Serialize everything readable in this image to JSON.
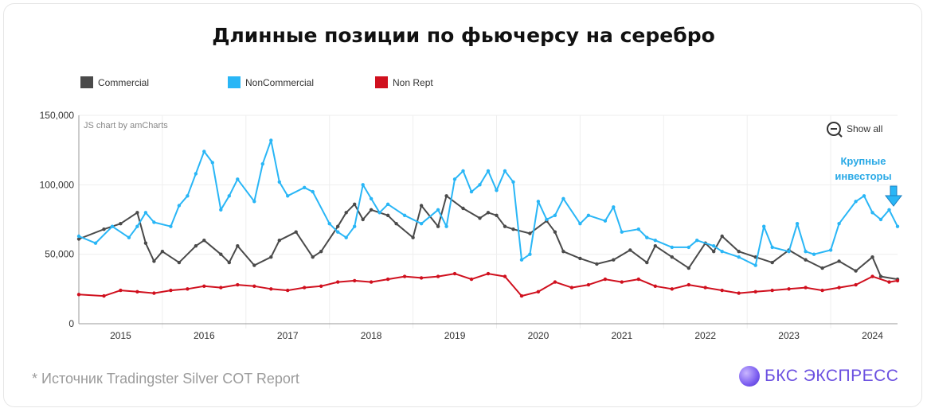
{
  "title": "Длинные позиции по фьючерсу на серебро",
  "legend": [
    {
      "label": "Commercial",
      "color": "#4a4a4a"
    },
    {
      "label": "NonCommercial",
      "color": "#29b6f6"
    },
    {
      "label": "Non Rept",
      "color": "#d0101e"
    }
  ],
  "credit": "JS chart by amCharts",
  "show_all": "Show all",
  "annotation": [
    "Крупные",
    "инвесторы"
  ],
  "footnote": "*  Источник Tradingster Silver COT Report",
  "brand": "БКС ЭКСПРЕСС",
  "chart_data": {
    "type": "line",
    "title": "Длинные позиции по фьючерсу на серебро",
    "ylim": [
      0,
      150000
    ],
    "yticks": [
      0,
      50000,
      100000,
      150000
    ],
    "ytick_labels": [
      "0",
      "50,000",
      "100,000",
      "150,000"
    ],
    "xlim": [
      2014.5,
      2024.3
    ],
    "xticks": [
      "2015",
      "2016",
      "2017",
      "2018",
      "2019",
      "2020",
      "2021",
      "2022",
      "2023",
      "2024"
    ],
    "grid": true,
    "legend_position": "top-left",
    "series": [
      {
        "name": "Commercial",
        "color": "#4a4a4a",
        "x": [
          2014.5,
          2014.8,
          2015.0,
          2015.2,
          2015.3,
          2015.4,
          2015.5,
          2015.7,
          2015.9,
          2016.0,
          2016.2,
          2016.3,
          2016.4,
          2016.6,
          2016.8,
          2016.9,
          2017.1,
          2017.3,
          2017.4,
          2017.6,
          2017.7,
          2017.8,
          2017.9,
          2018.0,
          2018.2,
          2018.3,
          2018.5,
          2018.6,
          2018.8,
          2018.9,
          2019.1,
          2019.3,
          2019.4,
          2019.5,
          2019.6,
          2019.7,
          2019.9,
          2020.1,
          2020.2,
          2020.3,
          2020.5,
          2020.7,
          2020.9,
          2021.1,
          2021.3,
          2021.4,
          2021.6,
          2021.8,
          2022.0,
          2022.1,
          2022.2,
          2022.4,
          2022.6,
          2022.8,
          2023.0,
          2023.2,
          2023.4,
          2023.6,
          2023.8,
          2024.0,
          2024.1,
          2024.3
        ],
        "values": [
          61000,
          68000,
          72000,
          80000,
          58000,
          45000,
          52000,
          44000,
          56000,
          60000,
          50000,
          44000,
          56000,
          42000,
          48000,
          60000,
          66000,
          48000,
          52000,
          70000,
          80000,
          86000,
          75000,
          82000,
          78000,
          72000,
          62000,
          85000,
          70000,
          92000,
          83000,
          76000,
          80000,
          78000,
          70000,
          68000,
          65000,
          74000,
          66000,
          52000,
          47000,
          43000,
          46000,
          53000,
          44000,
          56000,
          48000,
          40000,
          58000,
          52000,
          63000,
          52000,
          48000,
          44000,
          53000,
          46000,
          40000,
          45000,
          38000,
          48000,
          34000,
          32000
        ]
      },
      {
        "name": "NonCommercial",
        "color": "#29b6f6",
        "x": [
          2014.5,
          2014.7,
          2014.9,
          2015.1,
          2015.2,
          2015.3,
          2015.4,
          2015.6,
          2015.7,
          2015.8,
          2015.9,
          2016.0,
          2016.1,
          2016.2,
          2016.3,
          2016.4,
          2016.6,
          2016.7,
          2016.8,
          2016.9,
          2017.0,
          2017.2,
          2017.3,
          2017.5,
          2017.6,
          2017.7,
          2017.8,
          2017.9,
          2018.0,
          2018.1,
          2018.2,
          2018.4,
          2018.6,
          2018.8,
          2018.9,
          2019.0,
          2019.1,
          2019.2,
          2019.3,
          2019.4,
          2019.5,
          2019.6,
          2019.7,
          2019.8,
          2019.9,
          2020.0,
          2020.1,
          2020.2,
          2020.3,
          2020.5,
          2020.6,
          2020.8,
          2020.9,
          2021.0,
          2021.2,
          2021.3,
          2021.4,
          2021.6,
          2021.8,
          2021.9,
          2022.1,
          2022.2,
          2022.4,
          2022.6,
          2022.7,
          2022.8,
          2023.0,
          2023.1,
          2023.2,
          2023.3,
          2023.5,
          2023.6,
          2023.8,
          2023.9,
          2024.0,
          2024.1,
          2024.2,
          2024.3
        ],
        "values": [
          63000,
          58000,
          70000,
          62000,
          70000,
          80000,
          73000,
          70000,
          85000,
          92000,
          108000,
          124000,
          116000,
          82000,
          92000,
          104000,
          88000,
          115000,
          132000,
          102000,
          92000,
          98000,
          95000,
          72000,
          66000,
          62000,
          70000,
          100000,
          90000,
          80000,
          86000,
          78000,
          72000,
          82000,
          70000,
          104000,
          110000,
          95000,
          100000,
          110000,
          96000,
          110000,
          102000,
          46000,
          50000,
          88000,
          75000,
          78000,
          90000,
          72000,
          78000,
          74000,
          84000,
          66000,
          68000,
          62000,
          60000,
          55000,
          55000,
          60000,
          56000,
          52000,
          48000,
          42000,
          70000,
          55000,
          52000,
          72000,
          52000,
          50000,
          53000,
          72000,
          88000,
          92000,
          80000,
          75000,
          82000,
          70000
        ]
      },
      {
        "name": "Non Rept",
        "color": "#d0101e",
        "x": [
          2014.5,
          2014.8,
          2015.0,
          2015.2,
          2015.4,
          2015.6,
          2015.8,
          2016.0,
          2016.2,
          2016.4,
          2016.6,
          2016.8,
          2017.0,
          2017.2,
          2017.4,
          2017.6,
          2017.8,
          2018.0,
          2018.2,
          2018.4,
          2018.6,
          2018.8,
          2019.0,
          2019.2,
          2019.4,
          2019.6,
          2019.8,
          2020.0,
          2020.2,
          2020.4,
          2020.6,
          2020.8,
          2021.0,
          2021.2,
          2021.4,
          2021.6,
          2021.8,
          2022.0,
          2022.2,
          2022.4,
          2022.6,
          2022.8,
          2023.0,
          2023.2,
          2023.4,
          2023.6,
          2023.8,
          2024.0,
          2024.2,
          2024.3
        ],
        "values": [
          21000,
          20000,
          24000,
          23000,
          22000,
          24000,
          25000,
          27000,
          26000,
          28000,
          27000,
          25000,
          24000,
          26000,
          27000,
          30000,
          31000,
          30000,
          32000,
          34000,
          33000,
          34000,
          36000,
          32000,
          36000,
          34000,
          20000,
          23000,
          30000,
          26000,
          28000,
          32000,
          30000,
          32000,
          27000,
          25000,
          28000,
          26000,
          24000,
          22000,
          23000,
          24000,
          25000,
          26000,
          24000,
          26000,
          28000,
          34000,
          30000,
          31000
        ]
      }
    ],
    "annotations": [
      {
        "text": "Крупные инвесторы",
        "color": "#29b6f6",
        "arrow": "down"
      }
    ]
  }
}
